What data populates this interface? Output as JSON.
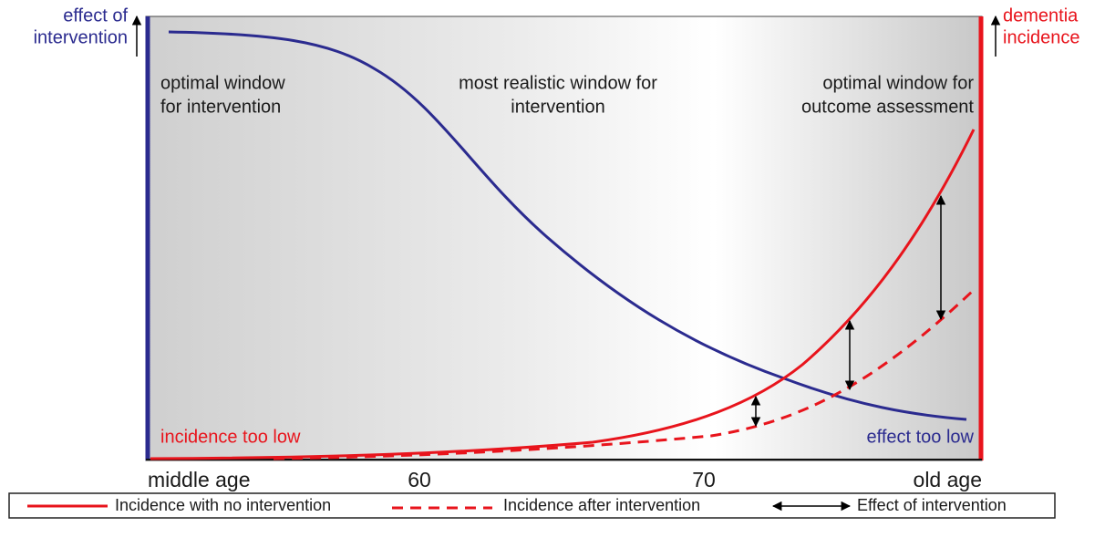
{
  "left_axis": {
    "label_line1": "effect of",
    "label_line2": "intervention"
  },
  "right_axis": {
    "label_line1": "dementia",
    "label_line2": "incidence"
  },
  "windows": {
    "left_line1": "optimal window",
    "left_line2": "for intervention",
    "middle_line1": "most realistic window for",
    "middle_line2": "intervention",
    "right_line1": "optimal window for",
    "right_line2": "outcome assessment"
  },
  "annotations": {
    "incidence_low": "incidence too low",
    "effect_low": "effect too low"
  },
  "x_labels": [
    "middle age",
    "60",
    "70",
    "old age"
  ],
  "legend": {
    "solid": "Incidence with no intervention",
    "dashed": "Incidence after intervention",
    "arrow": "Effect of intervention"
  }
}
